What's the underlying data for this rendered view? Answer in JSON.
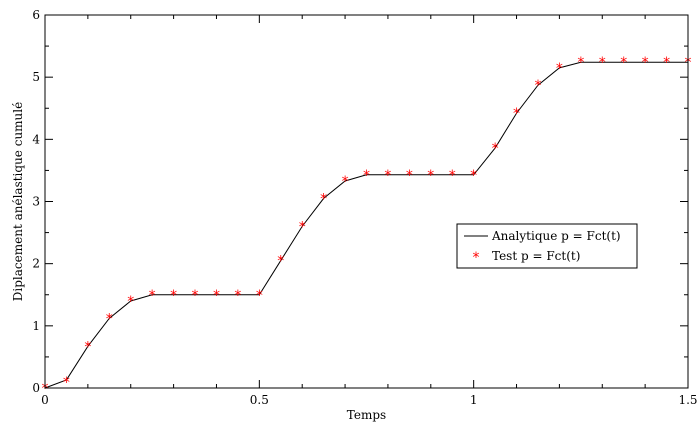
{
  "chart_data": {
    "type": "line",
    "title": "",
    "xlabel": "Temps",
    "ylabel": "Diplacement anélastique cumulé",
    "xlim": [
      0,
      1.5
    ],
    "ylim": [
      0,
      6
    ],
    "xticks": [
      "0",
      "0.5",
      "1",
      "1.5"
    ],
    "yticks": [
      "0",
      "1",
      "2",
      "3",
      "4",
      "5",
      "6"
    ],
    "grid": false,
    "legend_position": "right",
    "colors": {
      "line": "#000000",
      "marker": "#ff0000"
    },
    "series": [
      {
        "name": "Analytique p = Fct(t)",
        "style": "line",
        "x": [
          0,
          0.05,
          0.1,
          0.15,
          0.2,
          0.25,
          0.3,
          0.35,
          0.4,
          0.45,
          0.5,
          0.55,
          0.6,
          0.65,
          0.7,
          0.75,
          0.8,
          0.85,
          0.9,
          0.95,
          1.0,
          1.05,
          1.1,
          1.15,
          1.2,
          1.25,
          1.3,
          1.35,
          1.4,
          1.45,
          1.5
        ],
        "y": [
          0,
          0.13,
          0.67,
          1.12,
          1.4,
          1.5,
          1.5,
          1.5,
          1.5,
          1.5,
          1.5,
          2.05,
          2.6,
          3.05,
          3.33,
          3.43,
          3.43,
          3.43,
          3.43,
          3.43,
          3.43,
          3.86,
          4.42,
          4.87,
          5.15,
          5.24,
          5.24,
          5.24,
          5.24,
          5.24,
          5.24
        ]
      },
      {
        "name": "Test p = Fct(t)",
        "style": "markers",
        "marker": "*",
        "x": [
          0,
          0.05,
          0.1,
          0.15,
          0.2,
          0.25,
          0.3,
          0.35,
          0.4,
          0.45,
          0.5,
          0.55,
          0.6,
          0.65,
          0.7,
          0.75,
          0.8,
          0.85,
          0.9,
          0.95,
          1.0,
          1.05,
          1.1,
          1.15,
          1.2,
          1.25,
          1.3,
          1.35,
          1.4,
          1.45,
          1.5
        ],
        "y": [
          0,
          0.1,
          0.67,
          1.12,
          1.4,
          1.5,
          1.5,
          1.5,
          1.5,
          1.5,
          1.5,
          2.05,
          2.6,
          3.05,
          3.33,
          3.43,
          3.43,
          3.43,
          3.43,
          3.43,
          3.43,
          3.86,
          4.42,
          4.87,
          5.15,
          5.24,
          5.24,
          5.24,
          5.24,
          5.24,
          5.24
        ]
      }
    ]
  }
}
